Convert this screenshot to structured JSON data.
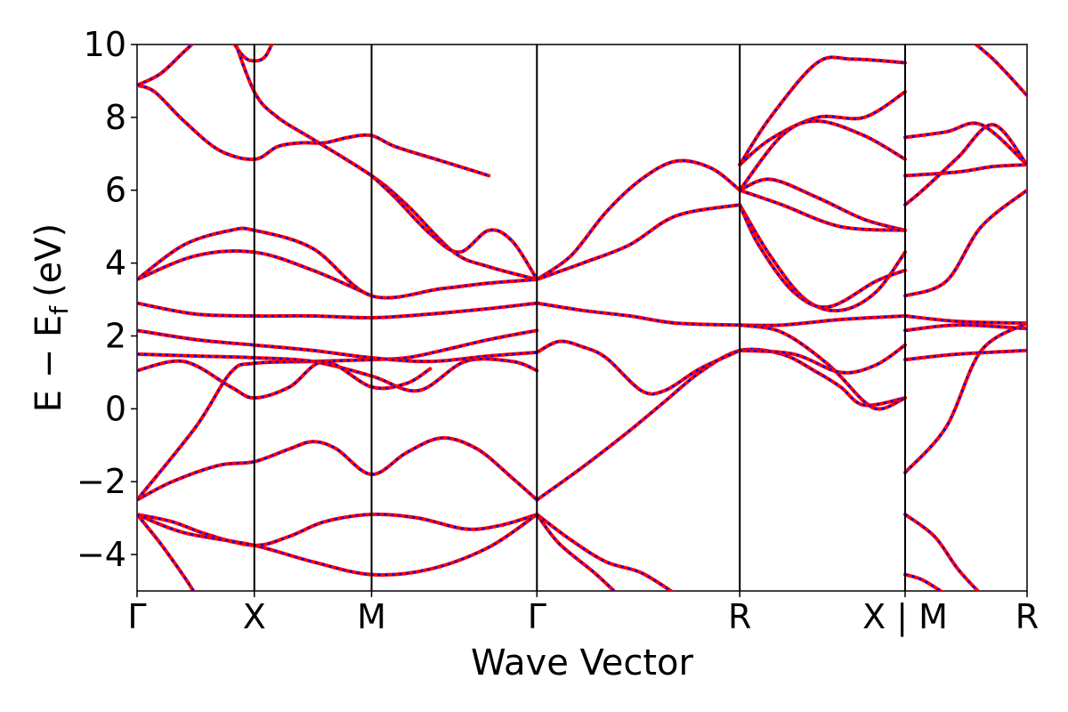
{
  "chart_data": {
    "type": "line",
    "title": "",
    "xlabel": "Wave Vector",
    "ylabel_main": "E − E",
    "ylabel_sub": "f",
    "ylabel_unit": "(eV)",
    "ylim": [
      -5,
      10
    ],
    "yticks": [
      -4,
      -2,
      0,
      2,
      4,
      6,
      8,
      10
    ],
    "ytick_labels": [
      "−4",
      "−2",
      "0",
      "2",
      "4",
      "6",
      "8",
      "10"
    ],
    "xlim": [
      0,
      7.59
    ],
    "kpoints": [
      {
        "x": 0.0,
        "label": "Γ"
      },
      {
        "x": 1.0,
        "label": "X"
      },
      {
        "x": 2.0,
        "label": "M"
      },
      {
        "x": 3.41,
        "label": "Γ"
      },
      {
        "x": 5.14,
        "label": "R"
      },
      {
        "x": 6.55,
        "label": "X | M"
      },
      {
        "x": 7.59,
        "label": "R"
      }
    ],
    "colors": {
      "band_solid": "#ff0000",
      "band_dashed": "#0000ff",
      "kline": "#000000"
    },
    "series": [
      {
        "values": [
          [
            0,
            8.88
          ],
          [
            0.15,
            8.7
          ],
          [
            0.4,
            7.9
          ],
          [
            0.7,
            7.1
          ],
          [
            1.0,
            6.85
          ],
          [
            1.2,
            7.2
          ],
          [
            1.4,
            7.3
          ],
          [
            1.6,
            7.3
          ],
          [
            1.8,
            7.45
          ],
          [
            2.0,
            7.5
          ],
          [
            2.2,
            7.2
          ],
          [
            2.6,
            6.8
          ],
          [
            3.0,
            6.4
          ]
        ]
      },
      {
        "values": [
          [
            0,
            8.88
          ],
          [
            0.2,
            9.2
          ],
          [
            0.4,
            9.8
          ],
          [
            0.6,
            10.4
          ]
        ]
      },
      {
        "values": [
          [
            0.75,
            10.4
          ],
          [
            0.9,
            9.7
          ],
          [
            1.0,
            9.55
          ],
          [
            1.1,
            9.7
          ],
          [
            1.2,
            10.4
          ]
        ]
      },
      {
        "values": [
          [
            0.8,
            10.4
          ],
          [
            1.0,
            8.7
          ],
          [
            1.2,
            8.0
          ],
          [
            1.5,
            7.4
          ],
          [
            2.0,
            6.4
          ],
          [
            2.3,
            5.6
          ],
          [
            2.7,
            4.3
          ],
          [
            3.0,
            3.9
          ],
          [
            3.41,
            3.55
          ]
        ]
      },
      {
        "values": [
          [
            0,
            -2.5
          ],
          [
            0.3,
            -2.0
          ],
          [
            0.7,
            -1.55
          ],
          [
            1.0,
            -1.45
          ],
          [
            1.3,
            -1.1
          ],
          [
            1.5,
            -0.9
          ],
          [
            1.7,
            -1.1
          ],
          [
            2.0,
            -1.8
          ],
          [
            2.3,
            -1.2
          ],
          [
            2.6,
            -0.8
          ],
          [
            2.9,
            -1.1
          ],
          [
            3.2,
            -1.9
          ],
          [
            3.41,
            -2.5
          ]
        ]
      },
      {
        "values": [
          [
            0,
            -2.5
          ],
          [
            0.5,
            -0.5
          ],
          [
            0.8,
            1.0
          ],
          [
            1.0,
            1.25
          ],
          [
            1.5,
            1.3
          ],
          [
            2.0,
            1.35
          ],
          [
            2.3,
            1.4
          ],
          [
            2.6,
            1.6
          ],
          [
            3.0,
            1.9
          ],
          [
            3.41,
            2.15
          ]
        ]
      },
      {
        "values": [
          [
            0,
            -2.9
          ],
          [
            0.3,
            -3.1
          ],
          [
            0.6,
            -3.45
          ],
          [
            1.0,
            -3.75
          ],
          [
            1.3,
            -3.5
          ],
          [
            1.6,
            -3.1
          ],
          [
            2.0,
            -2.9
          ],
          [
            2.4,
            -3.0
          ],
          [
            2.8,
            -3.3
          ],
          [
            3.1,
            -3.2
          ],
          [
            3.41,
            -2.9
          ]
        ]
      },
      {
        "values": [
          [
            0,
            -2.9
          ],
          [
            0.4,
            -3.4
          ],
          [
            1.0,
            -3.75
          ],
          [
            1.5,
            -4.2
          ],
          [
            2.0,
            -4.55
          ],
          [
            2.5,
            -4.4
          ],
          [
            3.0,
            -3.8
          ],
          [
            3.41,
            -2.9
          ]
        ]
      },
      {
        "values": [
          [
            0,
            -2.9
          ],
          [
            0.2,
            -3.7
          ],
          [
            0.4,
            -4.6
          ],
          [
            0.5,
            -5.1
          ]
        ]
      },
      {
        "values": [
          [
            3.41,
            -2.9
          ],
          [
            3.7,
            -3.6
          ],
          [
            4.0,
            -4.2
          ],
          [
            4.3,
            -4.5
          ],
          [
            4.6,
            -5.1
          ]
        ]
      },
      {
        "values": [
          [
            3.41,
            -2.9
          ],
          [
            3.6,
            -3.7
          ],
          [
            3.9,
            -4.5
          ],
          [
            4.1,
            -5.1
          ]
        ]
      },
      {
        "values": [
          [
            3.41,
            -2.5
          ],
          [
            3.8,
            -1.6
          ],
          [
            4.2,
            -0.6
          ],
          [
            4.5,
            0.2
          ],
          [
            4.8,
            1.0
          ],
          [
            5.14,
            1.6
          ],
          [
            5.5,
            1.5
          ],
          [
            5.8,
            1.0
          ],
          [
            6.0,
            0.6
          ],
          [
            6.2,
            0.1
          ],
          [
            6.55,
            0.3
          ]
        ]
      },
      {
        "values": [
          [
            3.41,
            2.9
          ],
          [
            3.8,
            2.7
          ],
          [
            4.2,
            2.55
          ],
          [
            4.6,
            2.35
          ],
          [
            5.14,
            2.3
          ],
          [
            5.5,
            2.3
          ],
          [
            6.0,
            2.45
          ],
          [
            6.55,
            2.55
          ]
        ]
      },
      {
        "values": [
          [
            3.41,
            1.55
          ],
          [
            3.6,
            1.85
          ],
          [
            3.8,
            1.7
          ],
          [
            4.0,
            1.4
          ],
          [
            4.3,
            0.5
          ],
          [
            4.5,
            0.5
          ],
          [
            4.8,
            1.1
          ],
          [
            5.14,
            1.6
          ]
        ]
      },
      {
        "values": [
          [
            3.41,
            3.55
          ],
          [
            3.7,
            4.2
          ],
          [
            4.0,
            5.4
          ],
          [
            4.3,
            6.3
          ],
          [
            4.6,
            6.8
          ],
          [
            4.9,
            6.6
          ],
          [
            5.14,
            6.0
          ]
        ]
      },
      {
        "values": [
          [
            3.41,
            3.55
          ],
          [
            3.8,
            4.0
          ],
          [
            4.2,
            4.5
          ],
          [
            4.6,
            5.3
          ],
          [
            5.14,
            5.6
          ]
        ]
      },
      {
        "values": [
          [
            5.14,
            6.0
          ],
          [
            5.4,
            6.3
          ],
          [
            5.8,
            5.8
          ],
          [
            6.2,
            5.2
          ],
          [
            6.55,
            4.9
          ]
        ]
      },
      {
        "values": [
          [
            5.14,
            6.0
          ],
          [
            5.5,
            5.6
          ],
          [
            6.0,
            5.0
          ],
          [
            6.55,
            4.9
          ]
        ]
      },
      {
        "values": [
          [
            5.14,
            6.7
          ],
          [
            5.4,
            7.4
          ],
          [
            5.8,
            8.0
          ],
          [
            6.2,
            8.0
          ],
          [
            6.55,
            8.7
          ]
        ]
      },
      {
        "values": [
          [
            5.14,
            6.7
          ],
          [
            5.4,
            8.0
          ],
          [
            5.8,
            9.5
          ],
          [
            6.1,
            9.6
          ],
          [
            6.55,
            9.5
          ]
        ]
      },
      {
        "values": [
          [
            5.14,
            6.0
          ],
          [
            5.5,
            7.5
          ],
          [
            5.8,
            7.9
          ],
          [
            6.2,
            7.5
          ],
          [
            6.55,
            6.85
          ]
        ]
      },
      {
        "values": [
          [
            5.14,
            5.6
          ],
          [
            5.4,
            4.2
          ],
          [
            5.7,
            3.0
          ],
          [
            6.0,
            2.7
          ],
          [
            6.3,
            3.2
          ],
          [
            6.55,
            4.3
          ]
        ]
      },
      {
        "values": [
          [
            5.14,
            5.6
          ],
          [
            5.3,
            4.5
          ],
          [
            5.6,
            3.2
          ],
          [
            5.9,
            2.8
          ],
          [
            6.3,
            3.5
          ],
          [
            6.55,
            3.8
          ]
        ]
      },
      {
        "values": [
          [
            5.14,
            2.3
          ],
          [
            5.5,
            2.1
          ],
          [
            5.9,
            1.2
          ],
          [
            6.2,
            0.2
          ],
          [
            6.35,
            0.0
          ],
          [
            6.55,
            0.3
          ]
        ]
      },
      {
        "values": [
          [
            5.14,
            1.6
          ],
          [
            5.6,
            1.5
          ],
          [
            6.0,
            1.0
          ],
          [
            6.3,
            1.2
          ],
          [
            6.55,
            1.75
          ]
        ]
      },
      {
        "values": [
          [
            0,
            3.55
          ],
          [
            0.4,
            4.5
          ],
          [
            0.8,
            4.9
          ],
          [
            1.0,
            4.9
          ],
          [
            1.5,
            4.4
          ],
          [
            2.0,
            3.1
          ],
          [
            2.6,
            3.3
          ],
          [
            3.0,
            3.45
          ],
          [
            3.41,
            3.55
          ]
        ]
      },
      {
        "values": [
          [
            0,
            3.55
          ],
          [
            0.5,
            4.2
          ],
          [
            1.0,
            4.3
          ],
          [
            1.5,
            3.8
          ],
          [
            2.0,
            3.1
          ]
        ]
      },
      {
        "values": [
          [
            2.0,
            6.4
          ],
          [
            2.2,
            5.8
          ],
          [
            2.5,
            4.8
          ],
          [
            2.75,
            4.3
          ],
          [
            3.0,
            4.9
          ],
          [
            3.2,
            4.6
          ],
          [
            3.41,
            3.55
          ]
        ]
      },
      {
        "values": [
          [
            0,
            2.9
          ],
          [
            0.5,
            2.6
          ],
          [
            1.0,
            2.55
          ],
          [
            1.5,
            2.55
          ],
          [
            2.0,
            2.5
          ],
          [
            2.5,
            2.6
          ],
          [
            3.0,
            2.75
          ],
          [
            3.41,
            2.9
          ]
        ]
      },
      {
        "values": [
          [
            0,
            2.15
          ],
          [
            0.5,
            1.9
          ],
          [
            1.0,
            1.75
          ],
          [
            1.5,
            1.6
          ],
          [
            2.0,
            1.4
          ],
          [
            2.5,
            1.3
          ],
          [
            3.0,
            1.45
          ],
          [
            3.41,
            1.55
          ]
        ]
      },
      {
        "values": [
          [
            0,
            1.5
          ],
          [
            0.5,
            1.45
          ],
          [
            1.0,
            1.4
          ],
          [
            1.5,
            1.3
          ],
          [
            2.0,
            0.9
          ],
          [
            2.4,
            0.5
          ],
          [
            2.8,
            1.3
          ],
          [
            3.2,
            1.3
          ],
          [
            3.41,
            1.05
          ]
        ]
      },
      {
        "values": [
          [
            0,
            1.05
          ],
          [
            0.4,
            1.3
          ],
          [
            0.8,
            0.6
          ],
          [
            1.0,
            0.3
          ],
          [
            1.3,
            0.6
          ],
          [
            1.6,
            1.3
          ],
          [
            2.0,
            0.6
          ],
          [
            2.3,
            0.7
          ],
          [
            2.5,
            1.1
          ]
        ]
      },
      {
        "values": [
          [
            6.55,
            7.45
          ],
          [
            6.9,
            7.6
          ],
          [
            7.2,
            7.8
          ],
          [
            7.59,
            6.7
          ]
        ]
      },
      {
        "values": [
          [
            6.55,
            6.4
          ],
          [
            7.0,
            6.5
          ],
          [
            7.3,
            6.65
          ],
          [
            7.59,
            6.7
          ]
        ]
      },
      {
        "values": [
          [
            6.55,
            5.6
          ],
          [
            6.7,
            6.0
          ],
          [
            7.0,
            6.9
          ],
          [
            7.3,
            7.8
          ],
          [
            7.59,
            6.7
          ]
        ]
      },
      {
        "values": [
          [
            6.55,
            3.1
          ],
          [
            6.9,
            3.5
          ],
          [
            7.2,
            5.0
          ],
          [
            7.59,
            6.0
          ]
        ]
      },
      {
        "values": [
          [
            6.55,
            2.55
          ],
          [
            7.0,
            2.4
          ],
          [
            7.59,
            2.35
          ]
        ]
      },
      {
        "values": [
          [
            6.55,
            2.15
          ],
          [
            7.0,
            2.3
          ],
          [
            7.59,
            2.2
          ]
        ]
      },
      {
        "values": [
          [
            6.55,
            1.35
          ],
          [
            7.0,
            1.5
          ],
          [
            7.59,
            1.6
          ]
        ]
      },
      {
        "values": [
          [
            6.55,
            -1.75
          ],
          [
            6.9,
            -0.5
          ],
          [
            7.2,
            1.6
          ],
          [
            7.59,
            2.35
          ]
        ]
      },
      {
        "values": [
          [
            6.55,
            -2.9
          ],
          [
            6.8,
            -3.5
          ],
          [
            7.0,
            -4.4
          ],
          [
            7.2,
            -5.1
          ]
        ]
      },
      {
        "values": [
          [
            6.55,
            -4.55
          ],
          [
            6.7,
            -4.7
          ],
          [
            6.9,
            -5.1
          ]
        ]
      },
      {
        "values": [
          [
            7.0,
            10.4
          ],
          [
            7.3,
            9.6
          ],
          [
            7.59,
            8.6
          ]
        ]
      }
    ]
  }
}
